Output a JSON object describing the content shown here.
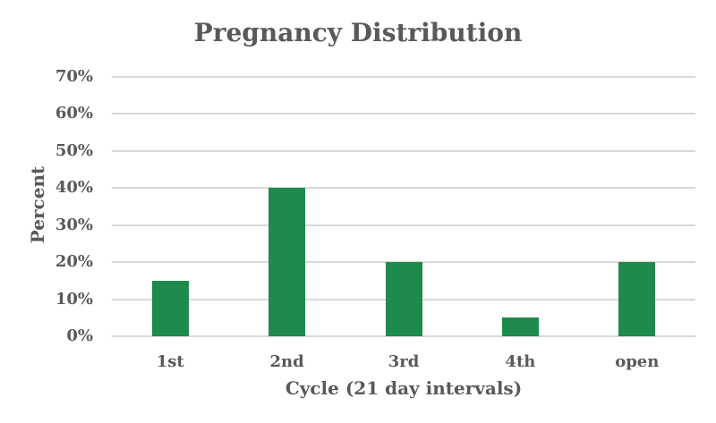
{
  "chart_data": {
    "type": "bar",
    "title": "Pregnancy Distribution",
    "categories": [
      "1st",
      "2nd",
      "3rd",
      "4th",
      "open"
    ],
    "values": [
      15,
      40,
      20,
      5,
      20
    ],
    "xlabel": "Cycle (21 day intervals)",
    "ylabel": "Percent",
    "ylim": [
      0,
      70
    ],
    "ytick_step": 10,
    "ytick_labels": [
      "0%",
      "10%",
      "20%",
      "30%",
      "40%",
      "50%",
      "60%",
      "70%"
    ],
    "grid": "horizontal",
    "legend": "none",
    "bar_color": "#1e8b4d",
    "gridline_color": "#d9d9d9",
    "text_color": "#595959"
  }
}
